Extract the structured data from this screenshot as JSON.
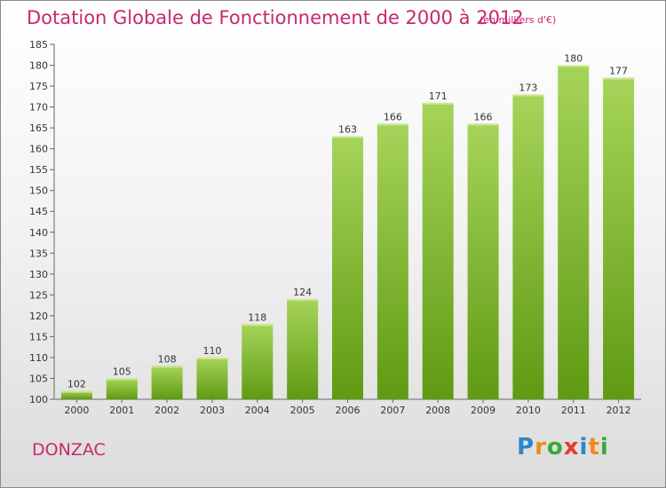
{
  "title": "Dotation Globale de Fonctionnement de 2000 à 2012",
  "subtitle": "(en milliers d'€)",
  "commune": "DONZAC",
  "logo": {
    "text": "Proxiti",
    "letters": [
      {
        "ch": "P",
        "color": "#2f86c9"
      },
      {
        "ch": "r",
        "color": "#f08a1c"
      },
      {
        "ch": "o",
        "color": "#3aa83a"
      },
      {
        "ch": "x",
        "color": "#e23b2e"
      },
      {
        "ch": "i",
        "color": "#2f86c9"
      },
      {
        "ch": "t",
        "color": "#f08a1c"
      },
      {
        "ch": "i",
        "color": "#3aa83a"
      }
    ]
  },
  "colors": {
    "title": "#c8286e",
    "bar_light": "#a6d45a",
    "bar_dark": "#5f9a12"
  },
  "chart_data": {
    "type": "bar",
    "title": "Dotation Globale de Fonctionnement de 2000 à 2012",
    "subtitle": "(en milliers d'€)",
    "categories": [
      "2000",
      "2001",
      "2002",
      "2003",
      "2004",
      "2005",
      "2006",
      "2007",
      "2008",
      "2009",
      "2010",
      "2011",
      "2012"
    ],
    "values": [
      102,
      105,
      108,
      110,
      118,
      124,
      163,
      166,
      171,
      166,
      173,
      180,
      177
    ],
    "data_labels": [
      "102",
      "105",
      "108",
      "110",
      "118",
      "124",
      "163",
      "166",
      "171",
      "166",
      "173",
      "180",
      "177"
    ],
    "ylim": [
      100,
      185
    ],
    "yticks": [
      100,
      105,
      110,
      115,
      120,
      125,
      130,
      135,
      140,
      145,
      150,
      155,
      160,
      165,
      170,
      175,
      180,
      185
    ],
    "xlabel": "",
    "ylabel": "",
    "grid": false,
    "legend": "none"
  }
}
